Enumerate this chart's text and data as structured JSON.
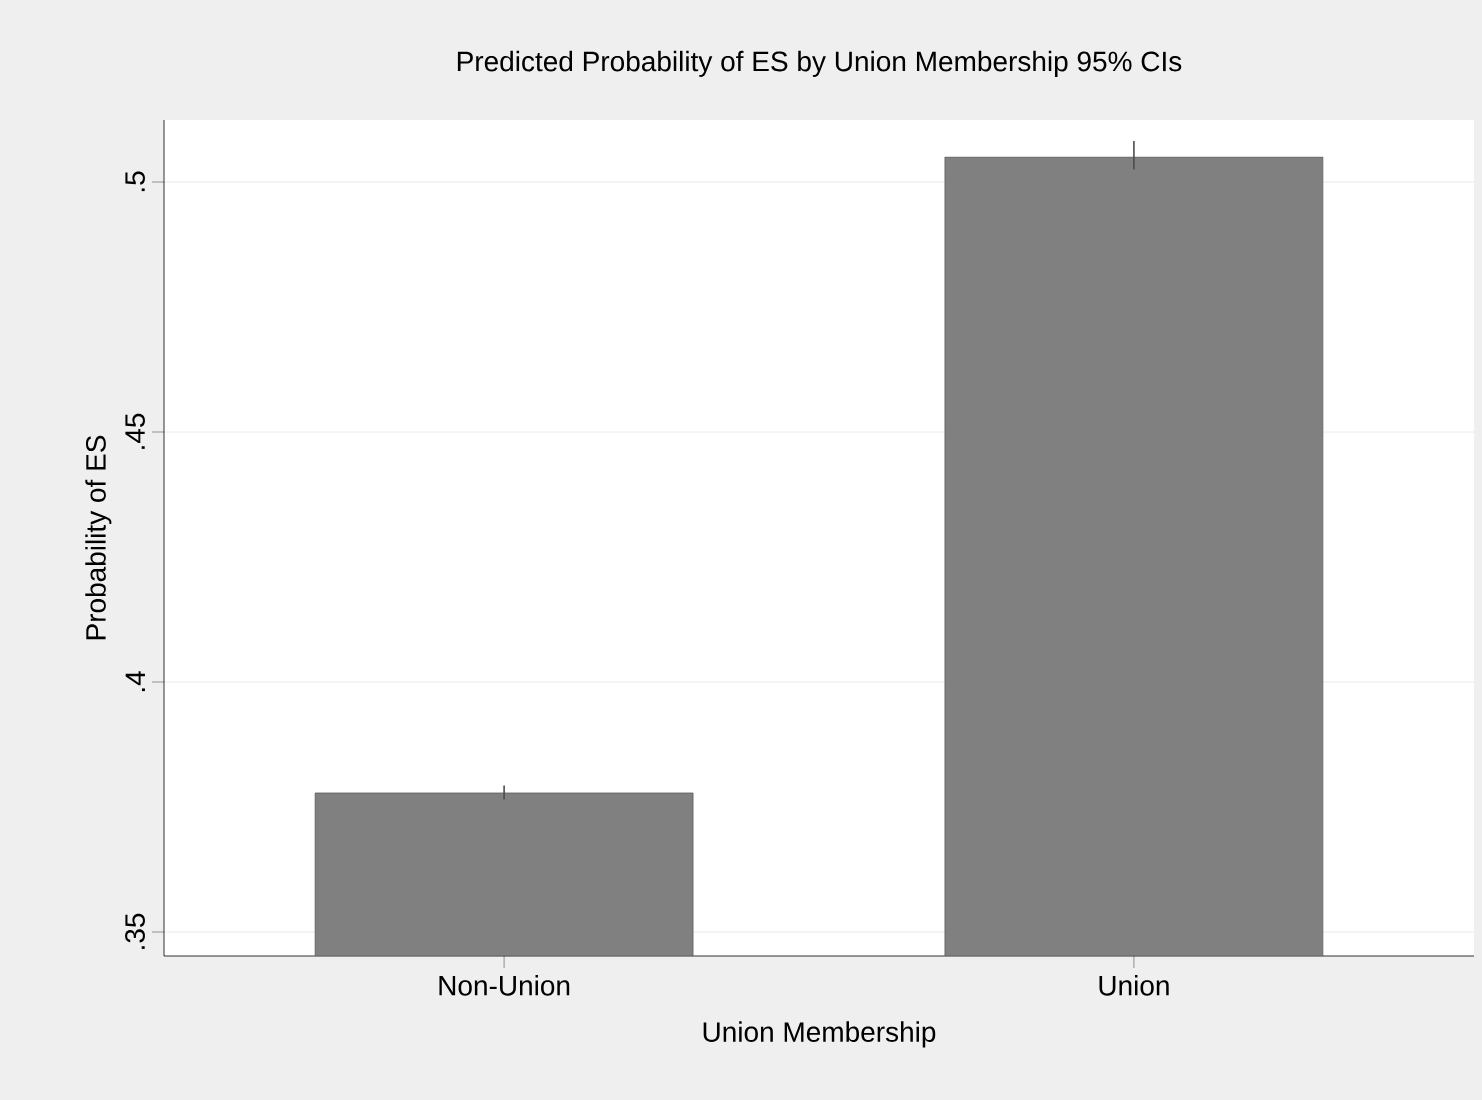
{
  "chart_data": {
    "type": "bar",
    "title": "Predicted Probability of ES by Union Membership 95% CIs",
    "xlabel": "Union Membership",
    "ylabel": "Probability of ES",
    "categories": [
      "Non-Union",
      "Union"
    ],
    "values": [
      0.3778,
      0.505
    ],
    "errors": [
      [
        0.3765,
        0.3793
      ],
      [
        0.5025,
        0.5082
      ]
    ],
    "color": "#808080",
    "ylim": [
      0.3452,
      0.5124
    ],
    "yticks": [
      {
        "value": 0.35,
        "label": ".35"
      },
      {
        "value": 0.4,
        "label": ".4"
      },
      {
        "value": 0.45,
        "label": ".45"
      },
      {
        "value": 0.5,
        "label": ".5"
      }
    ],
    "grid": "y"
  }
}
